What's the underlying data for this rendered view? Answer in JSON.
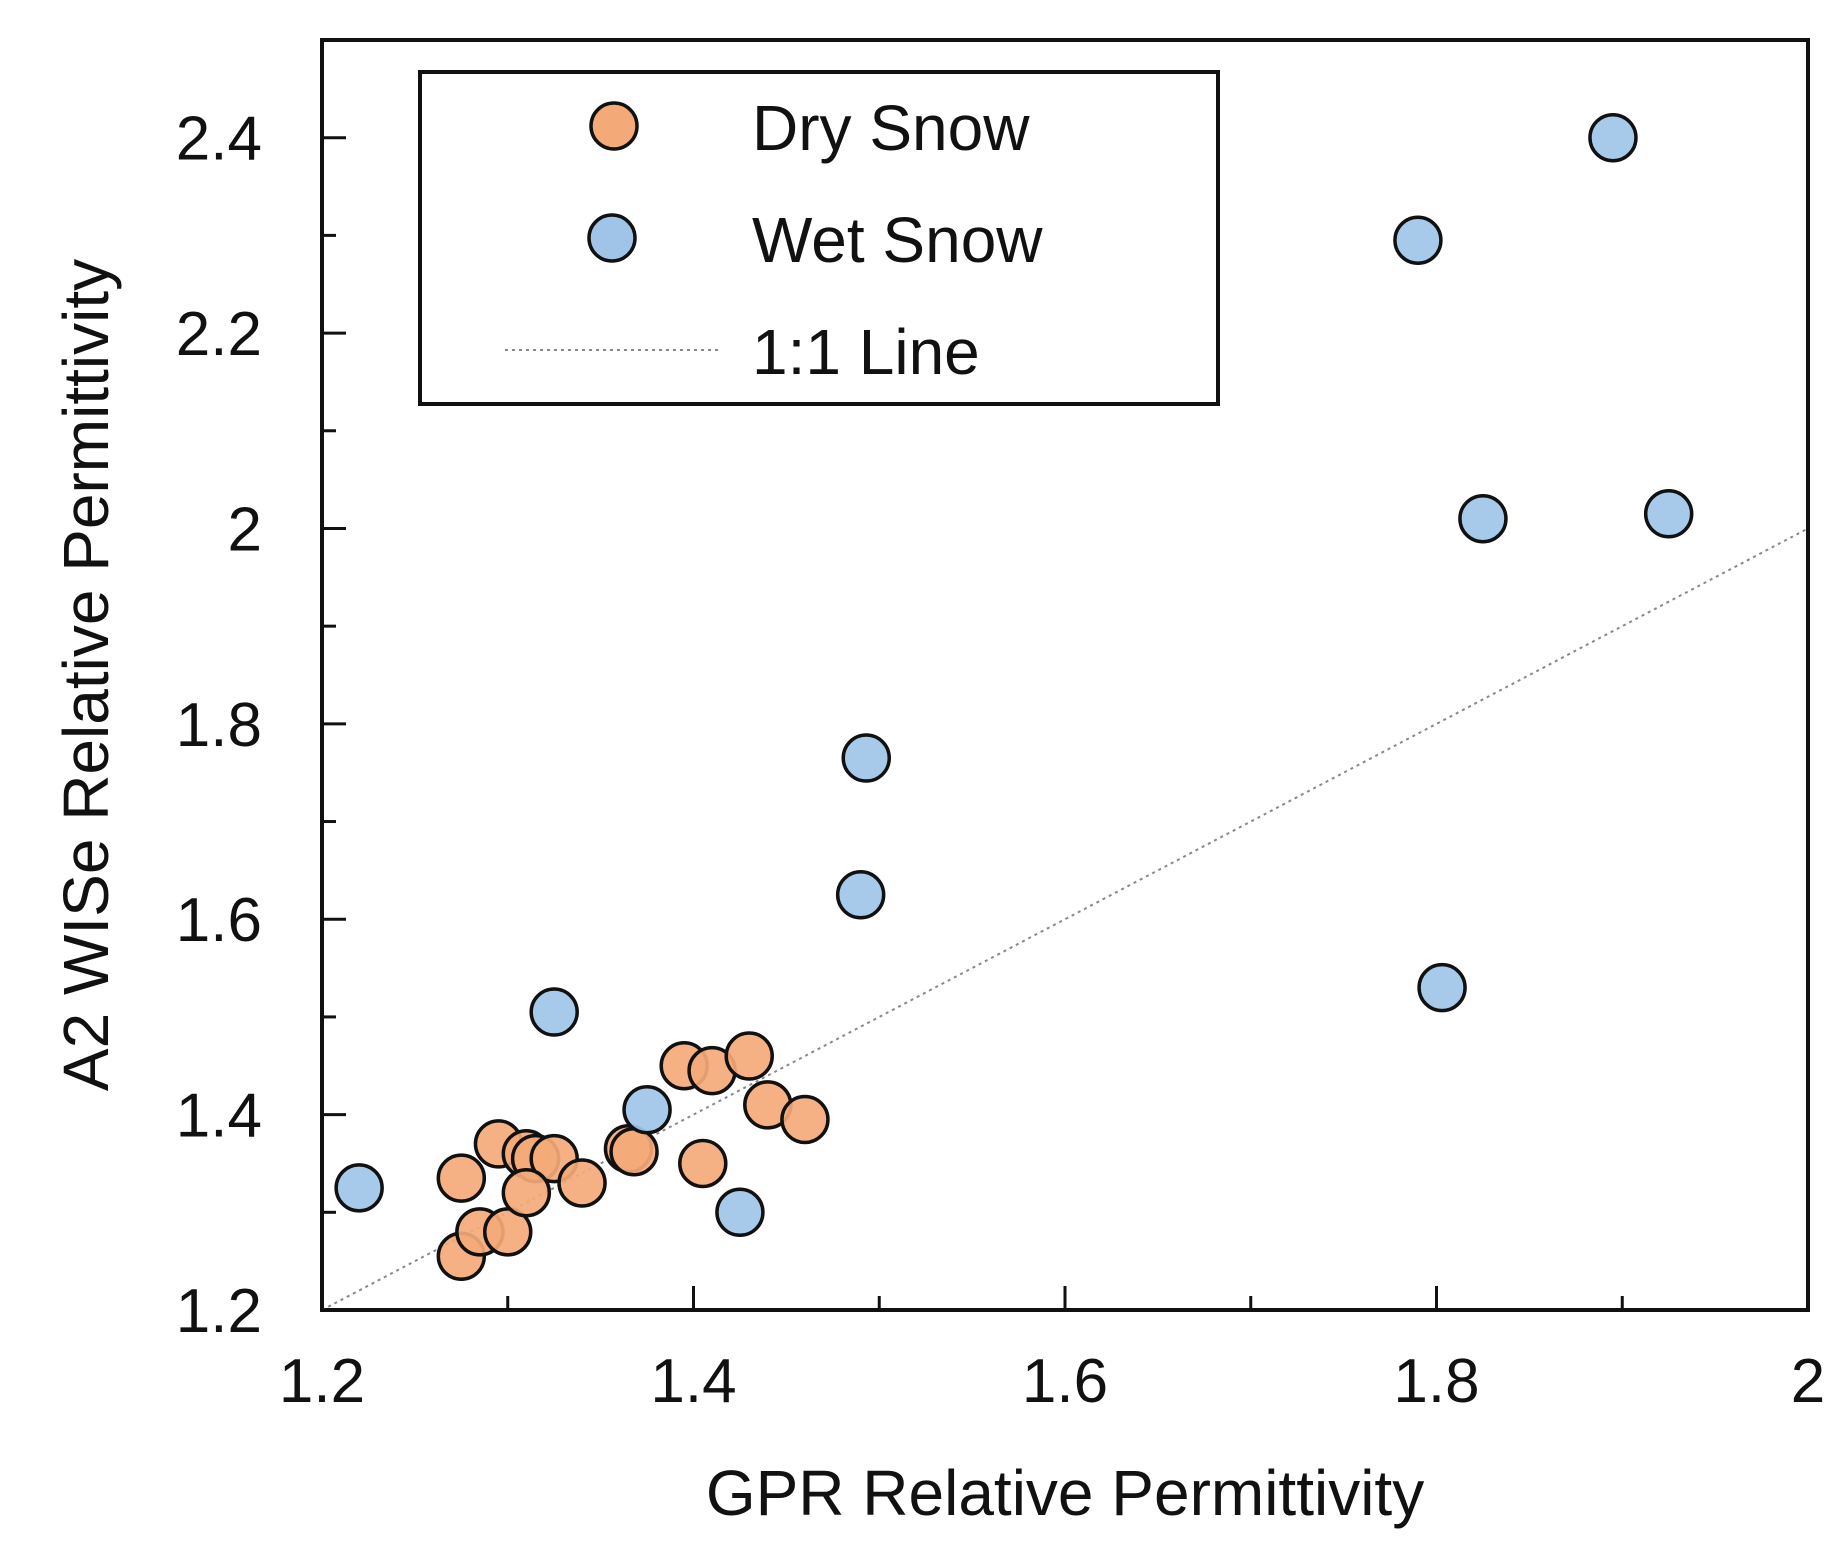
{
  "chart_data": {
    "type": "scatter",
    "xlabel": "GPR Relative Permittivity",
    "ylabel": "A2 WISe Relative Permittivity",
    "xlim": [
      1.2,
      2.0
    ],
    "ylim": [
      1.2,
      2.5
    ],
    "x_ticks": [
      1.2,
      1.4,
      1.6,
      1.8,
      2.0
    ],
    "x_tick_labels": [
      "1.2",
      "1.4",
      "1.6",
      "1.8",
      "2"
    ],
    "x_minor_ticks": [
      1.3,
      1.5,
      1.7,
      1.9
    ],
    "y_ticks": [
      1.2,
      1.4,
      1.6,
      1.8,
      2.0,
      2.2,
      2.4
    ],
    "y_tick_labels": [
      "1.2",
      "1.4",
      "1.6",
      "1.8",
      "2",
      "2.2",
      "2.4"
    ],
    "y_minor_ticks": [
      1.3,
      1.5,
      1.7,
      1.9,
      2.1,
      2.3
    ],
    "grid": false,
    "legend_position": "top-left",
    "reference_line": {
      "label": "1:1 Line",
      "x": [
        1.2,
        2.0
      ],
      "y": [
        1.2,
        2.0
      ],
      "color": "#888888",
      "style": "dotted"
    },
    "series": [
      {
        "name": "Dry Snow",
        "color": "#f4aa78",
        "points": [
          {
            "x": 1.275,
            "y": 1.255
          },
          {
            "x": 1.285,
            "y": 1.28
          },
          {
            "x": 1.3,
            "y": 1.28
          },
          {
            "x": 1.275,
            "y": 1.335
          },
          {
            "x": 1.295,
            "y": 1.37
          },
          {
            "x": 1.31,
            "y": 1.36
          },
          {
            "x": 1.315,
            "y": 1.355
          },
          {
            "x": 1.325,
            "y": 1.355
          },
          {
            "x": 1.31,
            "y": 1.32
          },
          {
            "x": 1.34,
            "y": 1.33
          },
          {
            "x": 1.365,
            "y": 1.365
          },
          {
            "x": 1.368,
            "y": 1.362
          },
          {
            "x": 1.395,
            "y": 1.45
          },
          {
            "x": 1.41,
            "y": 1.445
          },
          {
            "x": 1.43,
            "y": 1.46
          },
          {
            "x": 1.44,
            "y": 1.41
          },
          {
            "x": 1.46,
            "y": 1.395
          },
          {
            "x": 1.405,
            "y": 1.35
          }
        ]
      },
      {
        "name": "Wet Snow",
        "color": "#9fc4e8",
        "points": [
          {
            "x": 1.22,
            "y": 1.325
          },
          {
            "x": 1.325,
            "y": 1.505
          },
          {
            "x": 1.375,
            "y": 1.405
          },
          {
            "x": 1.425,
            "y": 1.3
          },
          {
            "x": 1.49,
            "y": 1.625
          },
          {
            "x": 1.493,
            "y": 1.765
          },
          {
            "x": 1.79,
            "y": 2.295
          },
          {
            "x": 1.803,
            "y": 1.53
          },
          {
            "x": 1.825,
            "y": 2.01
          },
          {
            "x": 1.895,
            "y": 2.4
          },
          {
            "x": 1.925,
            "y": 2.015
          }
        ]
      }
    ]
  }
}
